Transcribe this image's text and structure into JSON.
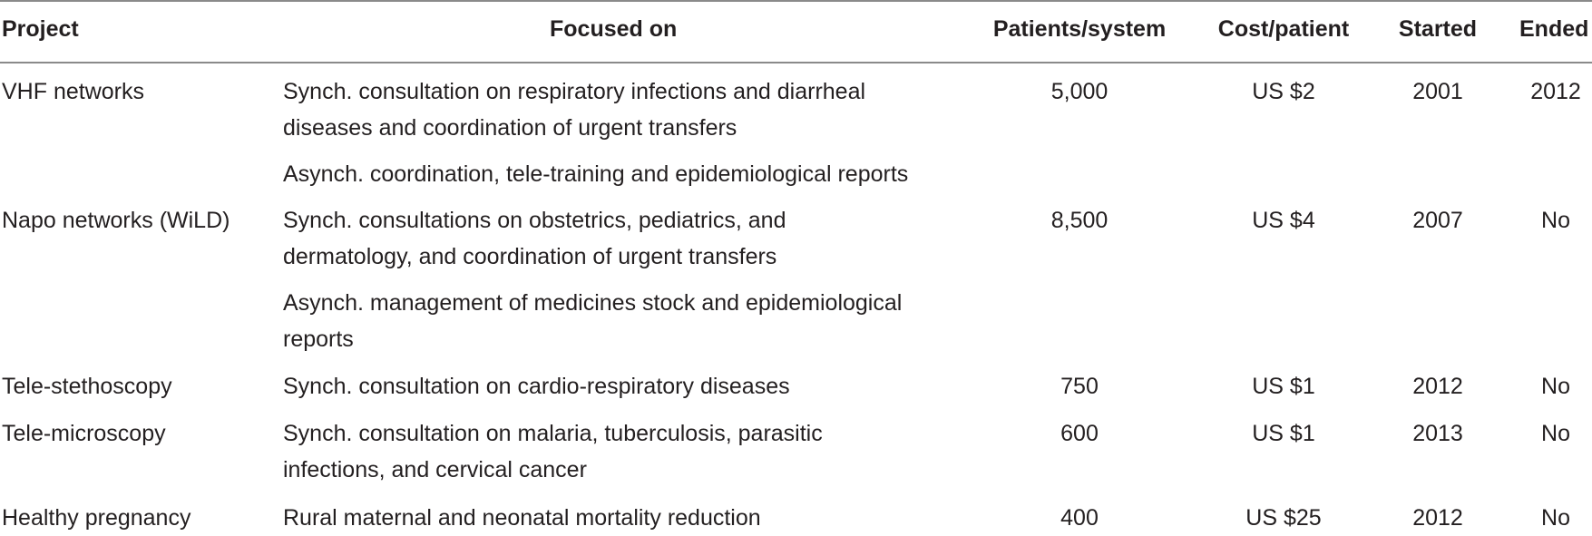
{
  "headers": {
    "project": "Project",
    "focused_on": "Focused on",
    "patients": "Patients/system",
    "cost": "Cost/patient",
    "started": "Started",
    "ended": "Ended"
  },
  "rows": [
    {
      "project": "VHF networks",
      "focus_1": "Synch. consultation on respiratory infections and diarrheal",
      "focus_2": "diseases and coordination of urgent transfers",
      "focus_3": "Asynch. coordination, tele-training and epidemiological reports",
      "patients": "5,000",
      "cost": "US $2",
      "started": "2001",
      "ended": "2012"
    },
    {
      "project": "Napo networks (WiLD)",
      "focus_1": "Synch. consultations on obstetrics, pediatrics, and",
      "focus_2": "dermatology, and coordination of urgent transfers",
      "focus_3": "Asynch. management of medicines stock and epidemiological",
      "focus_4": "reports",
      "patients": "8,500",
      "cost": "US $4",
      "started": "2007",
      "ended": "No"
    },
    {
      "project": "Tele-stethoscopy",
      "focus_1": "Synch. consultation on cardio-respiratory diseases",
      "patients": "750",
      "cost": "US $1",
      "started": "2012",
      "ended": "No"
    },
    {
      "project": "Tele-microscopy",
      "focus_1": "Synch. consultation on malaria, tuberculosis, parasitic",
      "focus_2": "infections, and cervical cancer",
      "patients": "600",
      "cost": "US $1",
      "started": "2013",
      "ended": "No"
    },
    {
      "project": "Healthy pregnancy",
      "focus_1": "Rural maternal and neonatal mortality reduction",
      "patients": "400",
      "cost": "US $25",
      "started": "2012",
      "ended": "No"
    }
  ]
}
